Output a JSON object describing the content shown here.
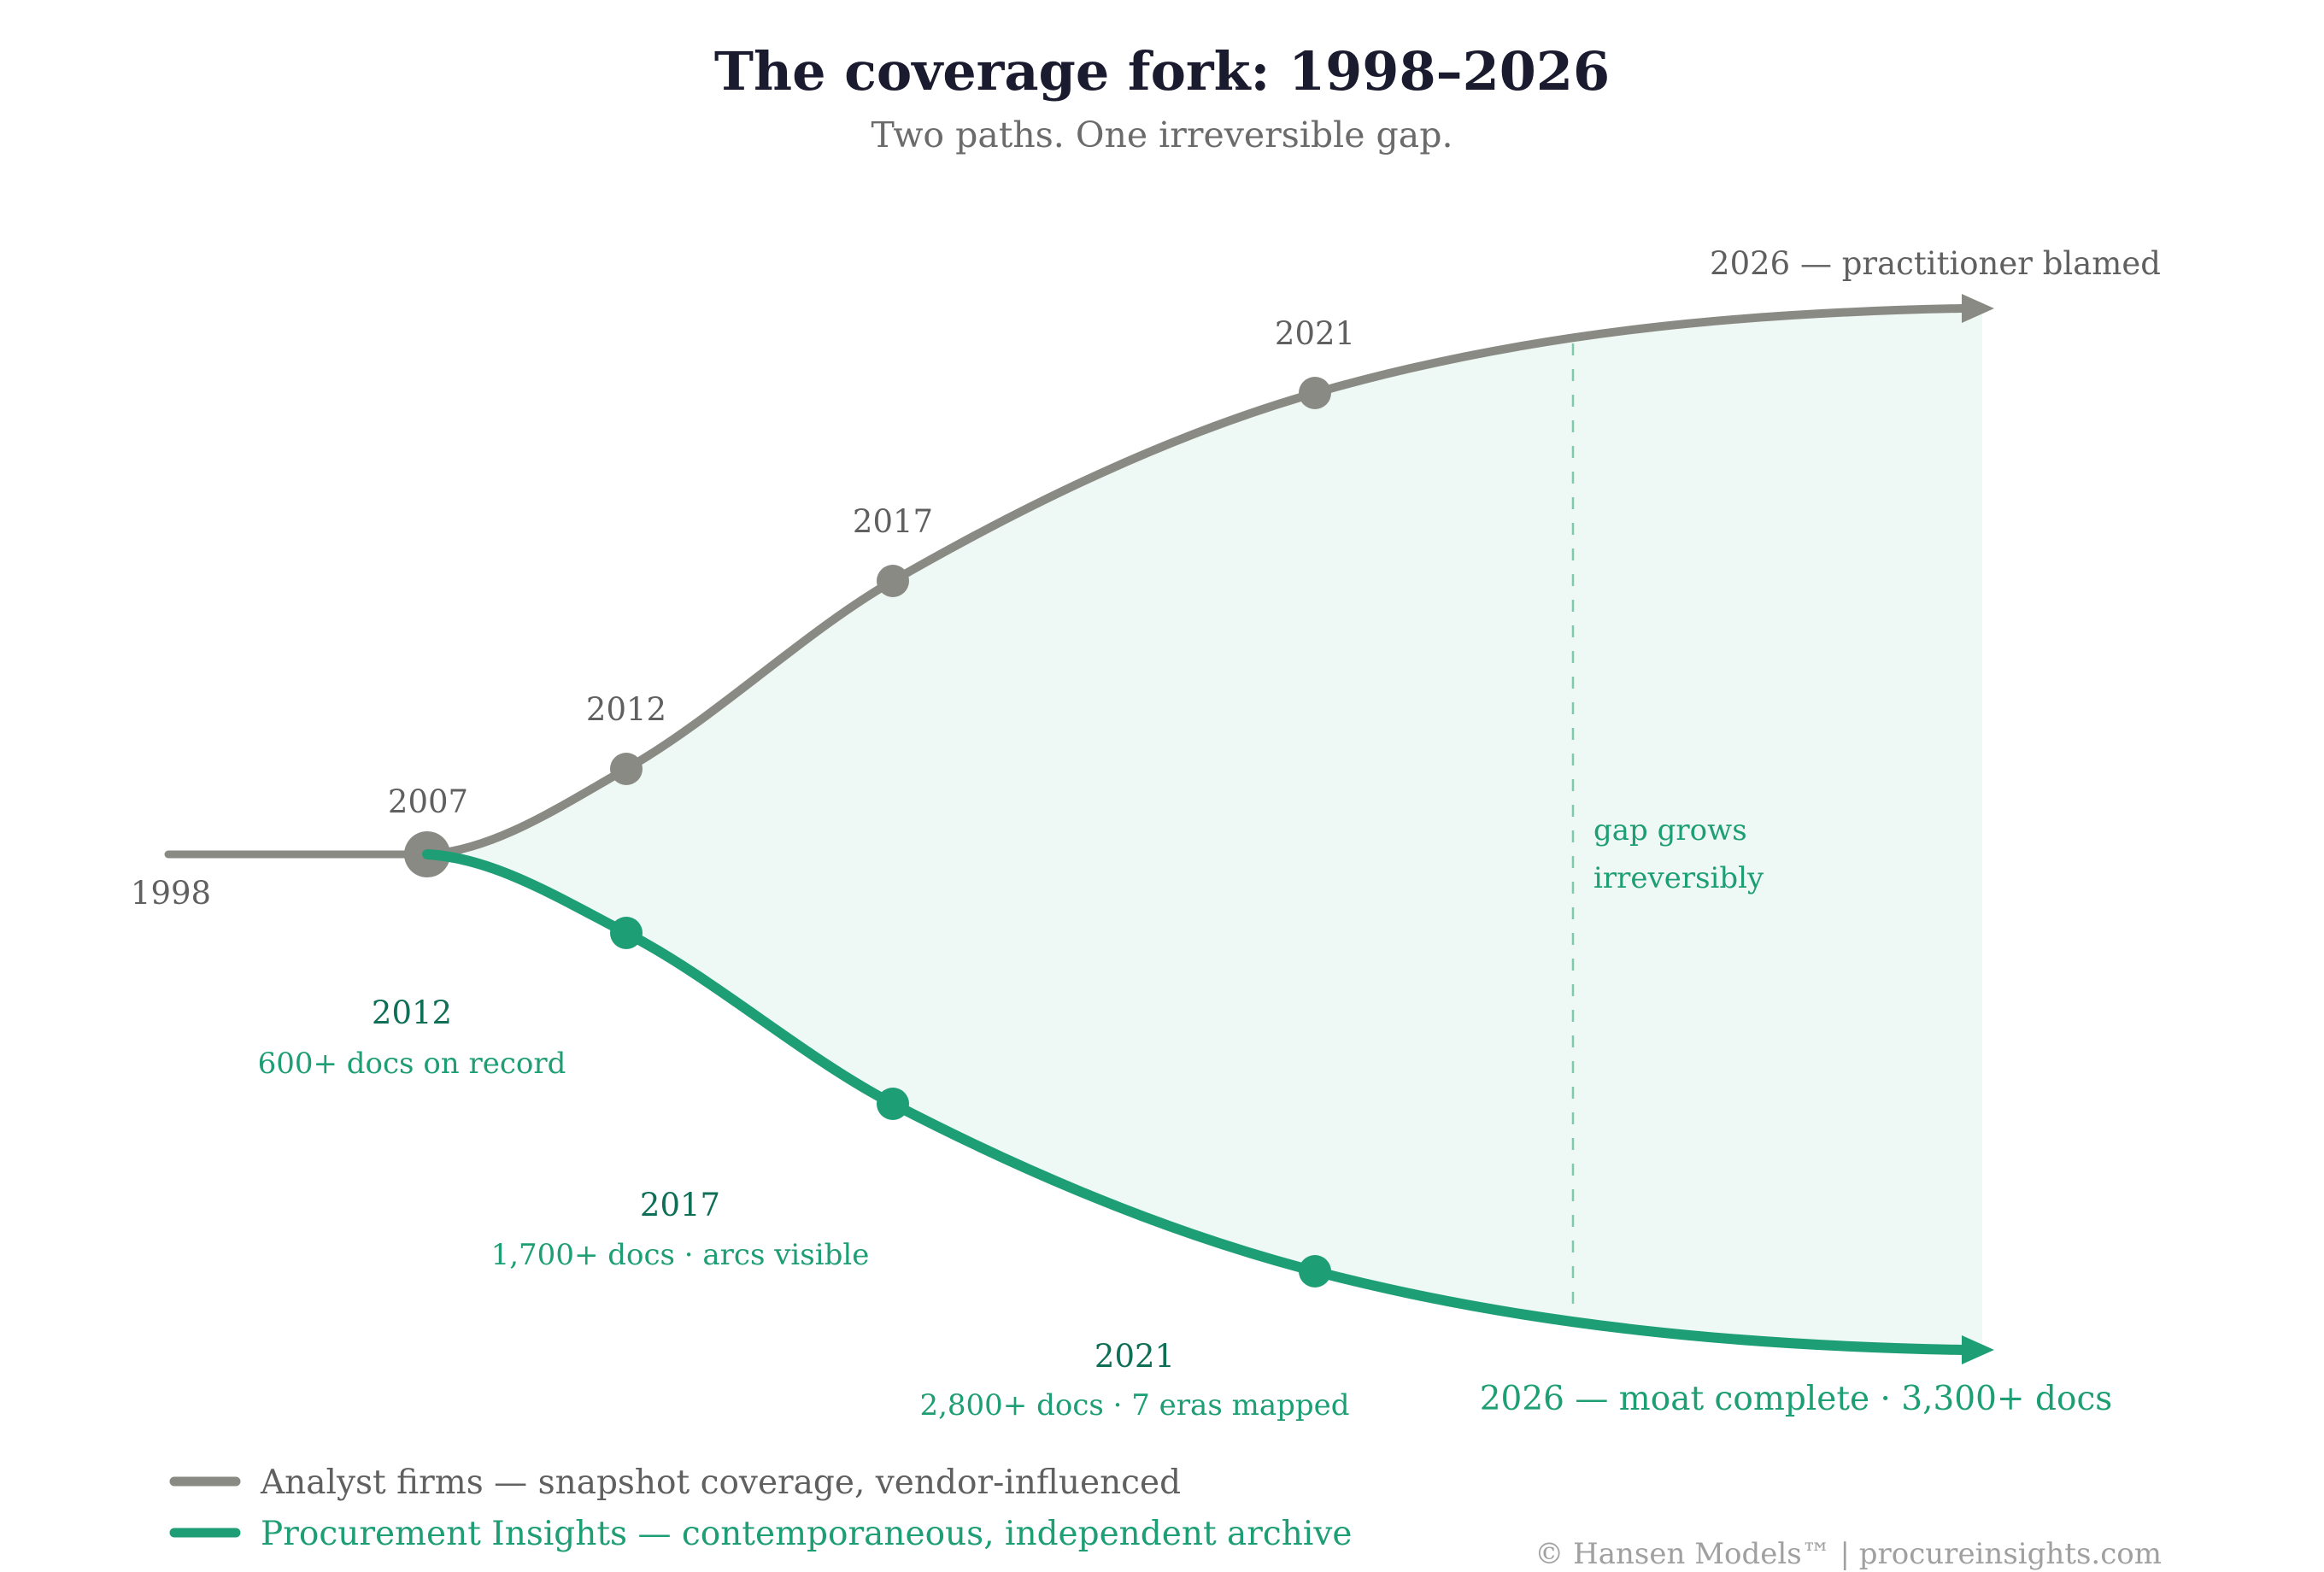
{
  "header": {
    "title": "The coverage fork: 1998–2026",
    "subtitle": "Two paths. One irreversible gap."
  },
  "colors": {
    "analyst": "#8a8a84",
    "insights": "#1d9e75",
    "insights_dark": "#0f6e56",
    "gap_fill": "#eef8f4",
    "gray_text": "#606060"
  },
  "chart_data": {
    "type": "line",
    "title": "The coverage fork: 1998–2026",
    "subtitle": "Two paths. One irreversible gap.",
    "x": [
      1998,
      2007,
      2012,
      2017,
      2021,
      2026
    ],
    "shared_start": {
      "years": [
        1998,
        2007
      ],
      "labels": [
        "1998",
        "2007"
      ]
    },
    "series": [
      {
        "name": "Analyst firms — snapshot coverage, vendor-influenced",
        "key": "analyst",
        "direction": "up",
        "milestones": [
          {
            "year": 2012,
            "label": "2012"
          },
          {
            "year": 2017,
            "label": "2017"
          },
          {
            "year": 2021,
            "label": "2021"
          }
        ],
        "end_label": "2026 — practitioner blamed"
      },
      {
        "name": "Procurement Insights — contemporaneous, independent archive",
        "key": "insights",
        "direction": "down",
        "milestones": [
          {
            "year": 2012,
            "label": "2012",
            "detail": "600+ docs on record",
            "docs": 600
          },
          {
            "year": 2017,
            "label": "2017",
            "detail": "1,700+ docs · arcs visible",
            "docs": 1700
          },
          {
            "year": 2021,
            "label": "2021",
            "detail": "2,800+ docs · 7 eras mapped",
            "docs": 2800
          }
        ],
        "end_label": "2026 — moat complete · 3,300+ docs",
        "end_docs": 3300
      }
    ],
    "annotation": {
      "lines": [
        "gap grows",
        "irreversibly"
      ]
    },
    "legend": {
      "placement": "bottom-left",
      "entries": [
        {
          "label": "Analyst firms — snapshot coverage, vendor-influenced",
          "key": "analyst"
        },
        {
          "label": "Procurement Insights — contemporaneous, independent archive",
          "key": "insights"
        }
      ]
    },
    "grid": false
  },
  "footer": {
    "credit": "© Hansen Models™ | procureinsights.com"
  }
}
